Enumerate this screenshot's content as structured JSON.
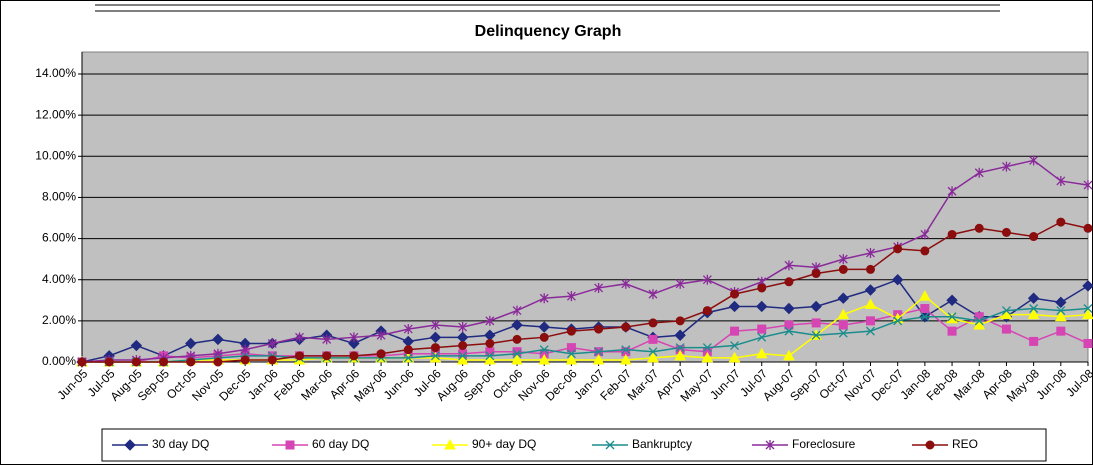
{
  "chart_data": {
    "type": "line",
    "title": "Delinquency Graph",
    "categories": [
      "Jun-05",
      "Jul-05",
      "Aug-05",
      "Sep-05",
      "Oct-05",
      "Nov-05",
      "Dec-05",
      "Jan-06",
      "Feb-06",
      "Mar-06",
      "Apr-06",
      "May-06",
      "Jun-06",
      "Jul-06",
      "Aug-06",
      "Sep-06",
      "Oct-06",
      "Nov-06",
      "Dec-06",
      "Jan-07",
      "Feb-07",
      "Mar-07",
      "Apr-07",
      "May-07",
      "Jun-07",
      "Jul-07",
      "Aug-07",
      "Sep-07",
      "Oct-07",
      "Nov-07",
      "Dec-07",
      "Jan-08",
      "Feb-08",
      "Mar-08",
      "Apr-08",
      "May-08",
      "Jun-08",
      "Jul-08"
    ],
    "series": [
      {
        "name": "30 day DQ",
        "color": "#1f2a80",
        "marker": "diamond",
        "values": [
          0,
          0.3,
          0.8,
          0.3,
          0.9,
          1.1,
          0.9,
          0.9,
          1.1,
          1.3,
          0.9,
          1.5,
          1.0,
          1.2,
          1.2,
          1.3,
          1.8,
          1.7,
          1.6,
          1.7,
          1.7,
          1.2,
          1.3,
          2.4,
          2.7,
          2.7,
          2.6,
          2.7,
          3.1,
          3.5,
          4.0,
          2.2,
          3.0,
          2.2,
          2.2,
          3.1,
          2.9,
          3.7
        ]
      },
      {
        "name": "60 day DQ",
        "color": "#d645b4",
        "marker": "square",
        "values": [
          0,
          0,
          0,
          0.3,
          0.2,
          0.3,
          0.4,
          0.3,
          0.3,
          0.3,
          0.3,
          0.3,
          0.4,
          0.4,
          0.4,
          0.5,
          0.5,
          0.4,
          0.7,
          0.5,
          0.5,
          1.1,
          0.6,
          0.5,
          1.5,
          1.6,
          1.8,
          1.9,
          1.8,
          2.0,
          2.3,
          2.6,
          1.5,
          2.2,
          1.6,
          1.0,
          1.5,
          0.9
        ]
      },
      {
        "name": "90+ day DQ",
        "color": "#ffff00",
        "marker": "triangle",
        "values": [
          0,
          0,
          0,
          0,
          0.1,
          0.1,
          0.1,
          0.1,
          0.1,
          0.2,
          0.2,
          0.2,
          0.2,
          0.2,
          0.1,
          0.1,
          0.1,
          0.1,
          0.1,
          0.1,
          0.1,
          0.2,
          0.3,
          0.2,
          0.2,
          0.4,
          0.3,
          1.3,
          2.3,
          2.8,
          2.1,
          3.2,
          2.1,
          1.8,
          2.3,
          2.3,
          2.2,
          2.3
        ]
      },
      {
        "name": "Bankruptcy",
        "color": "#1a8c8c",
        "marker": "x",
        "values": [
          0,
          0,
          0,
          0,
          0.1,
          0.2,
          0.3,
          0.3,
          0.2,
          0.2,
          0.2,
          0.2,
          0.2,
          0.3,
          0.3,
          0.3,
          0.4,
          0.6,
          0.4,
          0.5,
          0.6,
          0.5,
          0.7,
          0.7,
          0.8,
          1.2,
          1.5,
          1.3,
          1.4,
          1.5,
          2.0,
          2.2,
          2.2,
          2.0,
          2.5,
          2.6,
          2.5,
          2.6
        ]
      },
      {
        "name": "Foreclosure",
        "color": "#8a2a9a",
        "marker": "star",
        "values": [
          0,
          0.1,
          0.1,
          0.2,
          0.3,
          0.4,
          0.6,
          0.9,
          1.2,
          1.1,
          1.2,
          1.3,
          1.6,
          1.8,
          1.7,
          2.0,
          2.5,
          3.1,
          3.2,
          3.6,
          3.8,
          3.3,
          3.8,
          4.0,
          3.4,
          3.9,
          4.7,
          4.6,
          5.0,
          5.3,
          5.6,
          6.2,
          8.3,
          9.2,
          9.5,
          9.8,
          8.8,
          8.6
        ]
      },
      {
        "name": "REO",
        "color": "#8b0d0d",
        "marker": "circle",
        "values": [
          0,
          0,
          0,
          0,
          0,
          0,
          0.1,
          0.1,
          0.3,
          0.3,
          0.3,
          0.4,
          0.6,
          0.7,
          0.8,
          0.9,
          1.1,
          1.2,
          1.5,
          1.6,
          1.7,
          1.9,
          2.0,
          2.5,
          3.3,
          3.6,
          3.9,
          4.3,
          4.5,
          4.5,
          5.5,
          5.4,
          6.2,
          6.5,
          6.3,
          6.1,
          6.8,
          6.5
        ]
      }
    ],
    "ylim": [
      0,
      14
    ],
    "yticks": [
      {
        "value": 0,
        "label": "0.00%"
      },
      {
        "value": 2,
        "label": "2.00%"
      },
      {
        "value": 4,
        "label": "4.00%"
      },
      {
        "value": 6,
        "label": "6.00%"
      },
      {
        "value": 8,
        "label": "8.00%"
      },
      {
        "value": 10,
        "label": "10.00%"
      },
      {
        "value": 12,
        "label": "12.00%"
      },
      {
        "value": 14,
        "label": "14.00%"
      }
    ],
    "grid": true,
    "legend": "bottom",
    "plot_background": "#c0c0c0"
  }
}
